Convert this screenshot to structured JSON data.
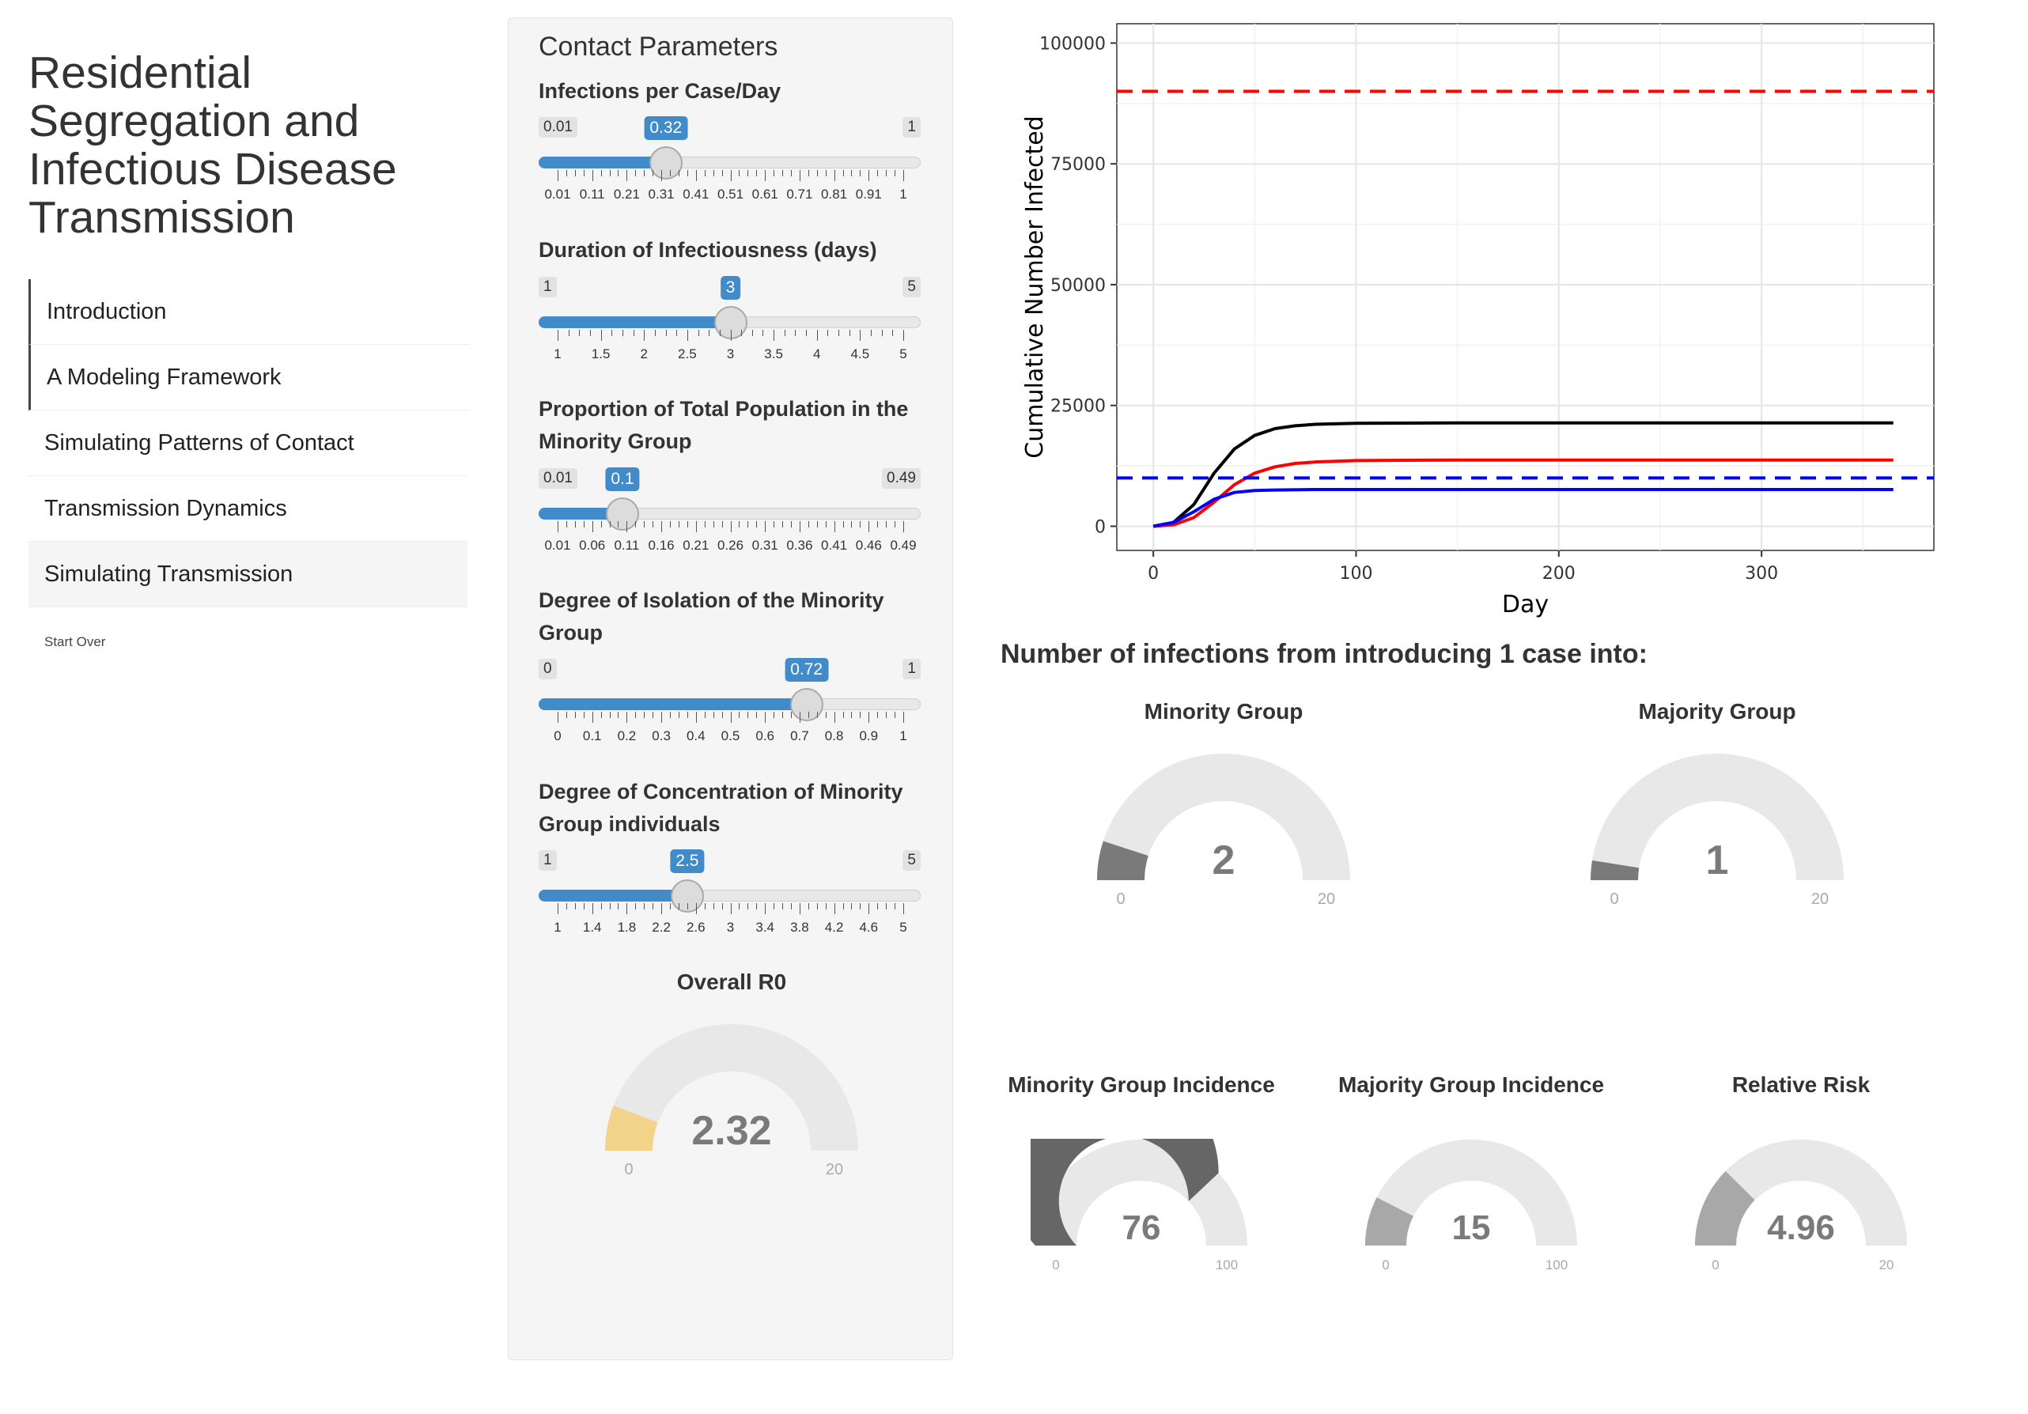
{
  "sidebar": {
    "title": "Residential Segregation and Infectious Disease Transmission",
    "items": [
      {
        "label": "Introduction"
      },
      {
        "label": "A Modeling Framework"
      },
      {
        "label": "Simulating Patterns of Contact"
      },
      {
        "label": "Transmission Dynamics"
      },
      {
        "label": "Simulating Transmission"
      }
    ],
    "start_over": "Start Over"
  },
  "panel": {
    "title": "Contact Parameters",
    "sliders": [
      {
        "label": "Infections per Case/Day",
        "min": "0.01",
        "max": "1",
        "value": "0.32",
        "fraction": 0.313,
        "ticks": [
          "0.01",
          "0.11",
          "0.21",
          "0.31",
          "0.41",
          "0.51",
          "0.61",
          "0.71",
          "0.81",
          "0.91",
          "1"
        ]
      },
      {
        "label": "Duration of Infectiousness (days)",
        "min": "1",
        "max": "5",
        "value": "3",
        "fraction": 0.5,
        "ticks": [
          "1",
          "1.5",
          "2",
          "2.5",
          "3",
          "3.5",
          "4",
          "4.5",
          "5"
        ]
      },
      {
        "label": "Proportion of Total Population in the Minority Group",
        "min": "0.01",
        "max": "0.49",
        "value": "0.1",
        "fraction": 0.1875,
        "ticks": [
          "0.01",
          "0.06",
          "0.11",
          "0.16",
          "0.21",
          "0.26",
          "0.31",
          "0.36",
          "0.41",
          "0.46",
          "0.49"
        ]
      },
      {
        "label": "Degree of Isolation of the Minority Group",
        "min": "0",
        "max": "1",
        "value": "0.72",
        "fraction": 0.72,
        "ticks": [
          "0",
          "0.1",
          "0.2",
          "0.3",
          "0.4",
          "0.5",
          "0.6",
          "0.7",
          "0.8",
          "0.9",
          "1"
        ]
      },
      {
        "label": "Degree of Concentration of Minority Group individuals",
        "min": "1",
        "max": "5",
        "value": "2.5",
        "fraction": 0.375,
        "ticks": [
          "1",
          "1.4",
          "1.8",
          "2.2",
          "2.6",
          "3",
          "3.4",
          "3.8",
          "4.2",
          "4.6",
          "5"
        ]
      }
    ],
    "overall_r0": {
      "title": "Overall R0",
      "value": "2.32",
      "min": "0",
      "max": "20",
      "fraction": 0.116,
      "color": "#f2d38a"
    }
  },
  "chart_data": {
    "type": "line",
    "xlabel": "Day",
    "ylabel": "Cumulative Number Infected",
    "xlim": [
      -18,
      385
    ],
    "ylim": [
      -5000,
      104000
    ],
    "x_ticks": [
      "0",
      "100",
      "200",
      "300"
    ],
    "y_ticks": [
      "0",
      "25000",
      "50000",
      "75000",
      "100000"
    ],
    "series": [
      {
        "color": "#000000",
        "style": "solid",
        "x": [
          0,
          10,
          20,
          30,
          40,
          50,
          60,
          70,
          80,
          100,
          150,
          200,
          250,
          300,
          365
        ],
        "y": [
          0,
          800,
          4500,
          11000,
          16000,
          18800,
          20200,
          20800,
          21100,
          21300,
          21400,
          21400,
          21400,
          21400,
          21400
        ]
      },
      {
        "color": "#ff0000",
        "style": "solid",
        "x": [
          0,
          10,
          20,
          30,
          40,
          50,
          60,
          70,
          80,
          100,
          150,
          200,
          250,
          300,
          365
        ],
        "y": [
          0,
          300,
          1800,
          5000,
          8600,
          11000,
          12300,
          13000,
          13300,
          13600,
          13700,
          13700,
          13700,
          13700,
          13700
        ]
      },
      {
        "color": "#0000ff",
        "style": "solid",
        "x": [
          0,
          10,
          20,
          30,
          40,
          50,
          60,
          80,
          100,
          150,
          200,
          250,
          300,
          365
        ],
        "y": [
          0,
          800,
          3000,
          5600,
          7000,
          7400,
          7500,
          7600,
          7600,
          7600,
          7600,
          7600,
          7600,
          7600
        ]
      },
      {
        "color": "#ff0000",
        "style": "dashed",
        "x": [
          -18,
          385
        ],
        "y": [
          90000,
          90000
        ]
      },
      {
        "color": "#0000ff",
        "style": "dashed",
        "x": [
          -18,
          385
        ],
        "y": [
          10000,
          10000
        ]
      }
    ]
  },
  "infections": {
    "title": "Number of infections from introducing 1 case into:",
    "gauges": [
      {
        "title": "Minority Group",
        "value": "2",
        "min": "0",
        "max": "20",
        "fraction": 0.1,
        "color": "#7a7a7a"
      },
      {
        "title": "Majority Group",
        "value": "1",
        "min": "0",
        "max": "20",
        "fraction": 0.05,
        "color": "#7a7a7a"
      }
    ]
  },
  "incidence": {
    "gauges": [
      {
        "title": "Minority Group Incidence",
        "value": "76",
        "min": "0",
        "max": "100",
        "fraction": 0.76,
        "color": "#666666"
      },
      {
        "title": "Majority Group Incidence",
        "value": "15",
        "min": "0",
        "max": "100",
        "fraction": 0.15,
        "color": "#a8a8a8"
      },
      {
        "title": "Relative Risk",
        "value": "4.96",
        "min": "0",
        "max": "20",
        "fraction": 0.248,
        "color": "#a8a8a8"
      }
    ]
  }
}
